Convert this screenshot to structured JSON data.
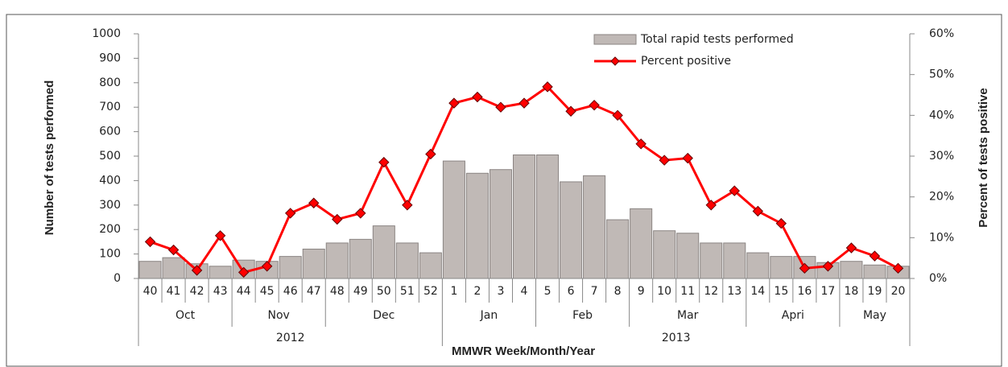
{
  "chart_data": {
    "type": "bar-line",
    "x_title": "MMWR Week/Month/Year",
    "y_title": "Number of tests performed",
    "y2_title": "Percent of tests positive",
    "categories": [
      "40",
      "41",
      "42",
      "43",
      "44",
      "45",
      "46",
      "47",
      "48",
      "49",
      "50",
      "51",
      "52",
      "1",
      "2",
      "3",
      "4",
      "5",
      "6",
      "7",
      "8",
      "9",
      "10",
      "11",
      "12",
      "13",
      "14",
      "15",
      "16",
      "17",
      "18",
      "19",
      "20"
    ],
    "months": [
      "Oct",
      "Oct",
      "Oct",
      "Oct",
      "Nov",
      "Nov",
      "Nov",
      "Nov",
      "Dec",
      "Dec",
      "Dec",
      "Dec",
      "Dec",
      "Jan",
      "Jan",
      "Jan",
      "Jan",
      "Feb",
      "Feb",
      "Feb",
      "Feb",
      "Mar",
      "Mar",
      "Mar",
      "Mar",
      "Mar",
      "Apri",
      "Apri",
      "Apri",
      "Apri",
      "May",
      "May",
      "May"
    ],
    "years": [
      "2012",
      "2012",
      "2012",
      "2012",
      "2012",
      "2012",
      "2012",
      "2012",
      "2012",
      "2012",
      "2012",
      "2012",
      "2012",
      "2013",
      "2013",
      "2013",
      "2013",
      "2013",
      "2013",
      "2013",
      "2013",
      "2013",
      "2013",
      "2013",
      "2013",
      "2013",
      "2013",
      "2013",
      "2013",
      "2013",
      "2013",
      "2013",
      "2013"
    ],
    "series": [
      {
        "name": "Total rapid tests performed",
        "color": "#c0b9b6",
        "type": "bar",
        "values": [
          70,
          85,
          60,
          50,
          75,
          70,
          90,
          120,
          145,
          160,
          215,
          145,
          105,
          480,
          430,
          445,
          505,
          505,
          395,
          420,
          240,
          285,
          195,
          185,
          145,
          145,
          105,
          90,
          90,
          65,
          70,
          55,
          50
        ]
      },
      {
        "name": "Percent positive",
        "color": "#ff0000",
        "type": "line",
        "axis": "y2",
        "values": [
          9,
          7,
          2,
          10.5,
          1.5,
          3,
          16,
          18.5,
          14.5,
          16,
          28.5,
          18,
          30.5,
          43,
          44.5,
          42,
          43,
          47,
          41,
          42.5,
          40,
          33,
          29,
          29.5,
          18,
          21.5,
          16.5,
          13.5,
          2.5,
          3,
          7.5,
          5.5,
          2.5
        ]
      }
    ],
    "ylim": [
      0,
      1000
    ],
    "yticks": [
      0,
      100,
      200,
      300,
      400,
      500,
      600,
      700,
      800,
      900,
      1000
    ],
    "y2lim": [
      0,
      60
    ],
    "y2ticks": [
      {
        "value": 0,
        "label": "0%"
      },
      {
        "value": 10,
        "label": "10%"
      },
      {
        "value": 20,
        "label": "20%"
      },
      {
        "value": 30,
        "label": "30%"
      },
      {
        "value": 40,
        "label": "40%"
      },
      {
        "value": 50,
        "label": "50%"
      },
      {
        "value": 60,
        "label": "60%"
      }
    ],
    "legend": "top-right"
  }
}
